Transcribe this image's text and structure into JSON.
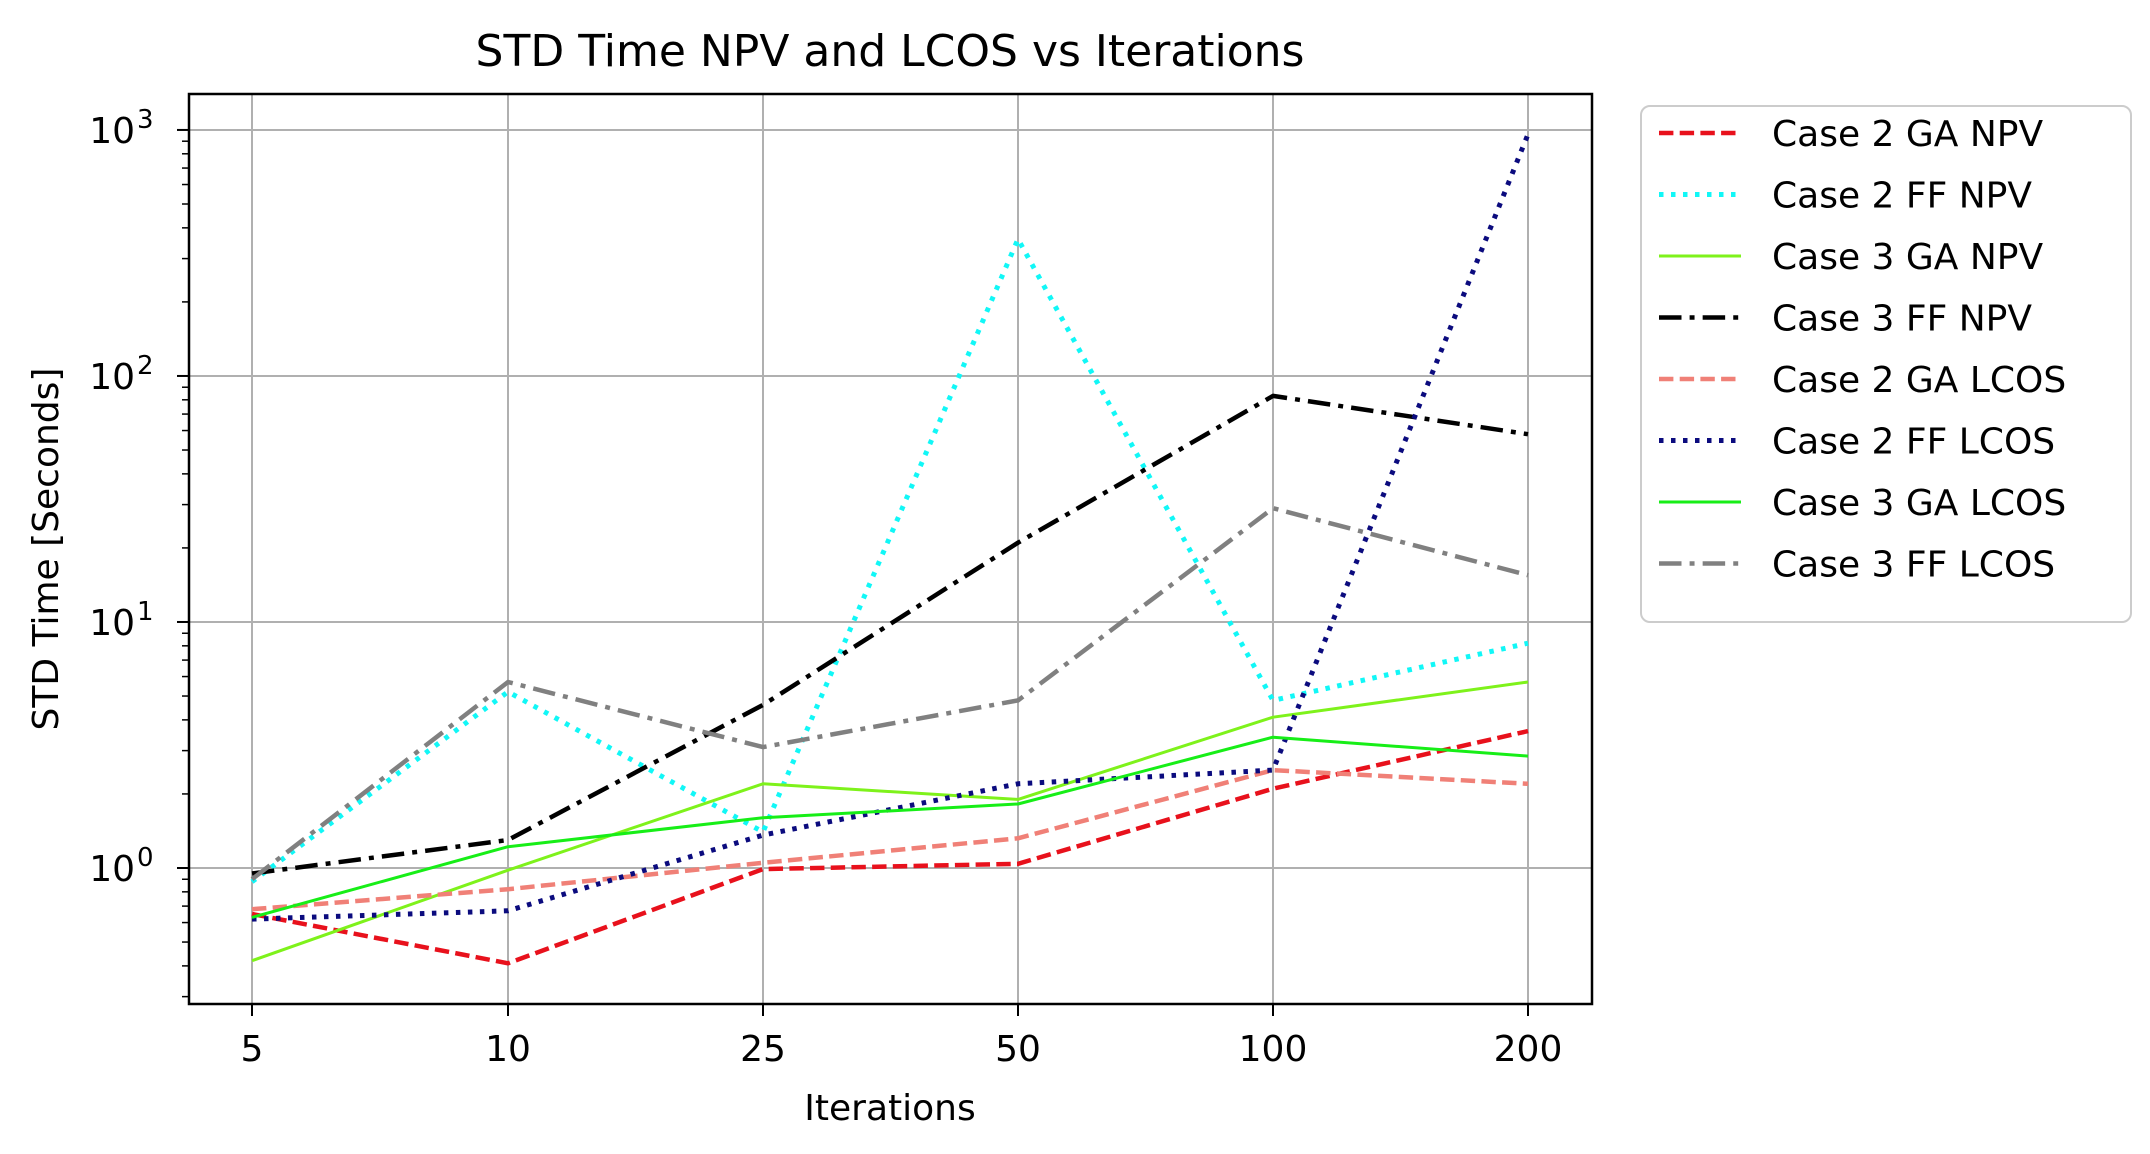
{
  "chart_data": {
    "type": "line",
    "title": "STD Time NPV and LCOS vs Iterations",
    "xlabel": "Iterations",
    "ylabel": "STD Time [Seconds]",
    "yscale": "log",
    "ylim": [
      0.28,
      1400
    ],
    "grid": true,
    "legend_position": "outside-right",
    "categories": [
      "5",
      "10",
      "25",
      "50",
      "100",
      "200"
    ],
    "y_ticks": [
      {
        "value": 1,
        "base": "10",
        "exp": "0"
      },
      {
        "value": 10,
        "base": "10",
        "exp": "1"
      },
      {
        "value": 100,
        "base": "10",
        "exp": "2"
      },
      {
        "value": 1000,
        "base": "10",
        "exp": "3"
      }
    ],
    "series": [
      {
        "name": "Case 2 GA NPV",
        "color": "#e8111c",
        "style": "dashed",
        "width": 4.5,
        "values": [
          0.65,
          0.41,
          0.99,
          1.04,
          2.1,
          3.6
        ]
      },
      {
        "name": "Case 2 FF NPV",
        "color": "#11f7f7",
        "style": "dotted",
        "width": 5,
        "values": [
          0.88,
          5.2,
          1.4,
          360,
          4.8,
          8.2
        ]
      },
      {
        "name": "Case 3 GA NPV",
        "color": "#7ef21b",
        "style": "solid",
        "width": 3,
        "values": [
          0.42,
          0.98,
          2.2,
          1.9,
          4.1,
          5.7
        ]
      },
      {
        "name": "Case 3 FF NPV",
        "color": "#000000",
        "style": "dashdot",
        "width": 4.5,
        "values": [
          0.95,
          1.3,
          4.6,
          21,
          83,
          58
        ]
      },
      {
        "name": "Case 2 GA LCOS",
        "color": "#f08077",
        "style": "dashed",
        "width": 4.5,
        "values": [
          0.68,
          0.82,
          1.05,
          1.32,
          2.5,
          2.2
        ]
      },
      {
        "name": "Case 2 FF LCOS",
        "color": "#0b0b7e",
        "style": "dotted",
        "width": 5,
        "values": [
          0.62,
          0.67,
          1.36,
          2.2,
          2.5,
          960
        ]
      },
      {
        "name": "Case 3 GA LCOS",
        "color": "#17ee17",
        "style": "solid",
        "width": 3,
        "values": [
          0.63,
          1.22,
          1.6,
          1.82,
          3.4,
          2.85
        ]
      },
      {
        "name": "Case 3 FF LCOS",
        "color": "#808080",
        "style": "dashdot",
        "width": 4.5,
        "values": [
          0.9,
          5.7,
          3.1,
          4.8,
          29,
          15.5
        ]
      }
    ]
  }
}
